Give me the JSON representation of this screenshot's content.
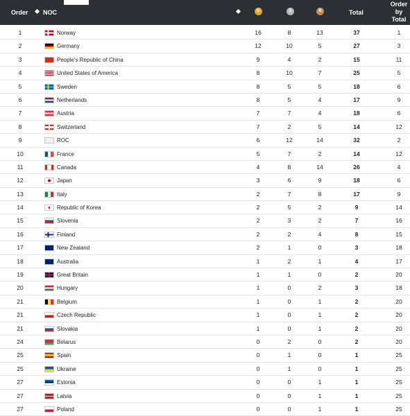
{
  "header": {
    "order": "Order",
    "noc": "NOC",
    "gold": "G",
    "silver": "S",
    "bronze": "B",
    "total": "Total",
    "order_by_total": "Order by Total"
  },
  "rows": [
    {
      "order": "1",
      "noc": "Norway",
      "g": "16",
      "s": "8",
      "b": "13",
      "total": "37",
      "obt": "1",
      "flag": "flag-norway"
    },
    {
      "order": "2",
      "noc": "Germany",
      "g": "12",
      "s": "10",
      "b": "5",
      "total": "27",
      "obt": "3",
      "flag": "flag-germany"
    },
    {
      "order": "3",
      "noc": "People's Republic of China",
      "g": "9",
      "s": "4",
      "b": "2",
      "total": "15",
      "obt": "11",
      "flag": "flag-china"
    },
    {
      "order": "4",
      "noc": "United States of America",
      "g": "8",
      "s": "10",
      "b": "7",
      "total": "25",
      "obt": "5",
      "flag": "flag-usa"
    },
    {
      "order": "5",
      "noc": "Sweden",
      "g": "8",
      "s": "5",
      "b": "5",
      "total": "18",
      "obt": "6",
      "flag": "flag-sweden"
    },
    {
      "order": "6",
      "noc": "Netherlands",
      "g": "8",
      "s": "5",
      "b": "4",
      "total": "17",
      "obt": "9",
      "flag": "flag-netherlands"
    },
    {
      "order": "7",
      "noc": "Austria",
      "g": "7",
      "s": "7",
      "b": "4",
      "total": "18",
      "obt": "6",
      "flag": "flag-austria"
    },
    {
      "order": "8",
      "noc": "Switzerland",
      "g": "7",
      "s": "2",
      "b": "5",
      "total": "14",
      "obt": "12",
      "flag": "flag-switzerland"
    },
    {
      "order": "9",
      "noc": "ROC",
      "g": "6",
      "s": "12",
      "b": "14",
      "total": "32",
      "obt": "2",
      "flag": "flag-roc"
    },
    {
      "order": "10",
      "noc": "France",
      "g": "5",
      "s": "7",
      "b": "2",
      "total": "14",
      "obt": "12",
      "flag": "flag-france"
    },
    {
      "order": "11",
      "noc": "Canada",
      "g": "4",
      "s": "8",
      "b": "14",
      "total": "26",
      "obt": "4",
      "flag": "flag-canada"
    },
    {
      "order": "12",
      "noc": "Japan",
      "g": "3",
      "s": "6",
      "b": "9",
      "total": "18",
      "obt": "6",
      "flag": "flag-japan"
    },
    {
      "order": "13",
      "noc": "Italy",
      "g": "2",
      "s": "7",
      "b": "8",
      "total": "17",
      "obt": "9",
      "flag": "flag-italy"
    },
    {
      "order": "14",
      "noc": "Republic of Korea",
      "g": "2",
      "s": "5",
      "b": "2",
      "total": "9",
      "obt": "14",
      "flag": "flag-korea"
    },
    {
      "order": "15",
      "noc": "Slovenia",
      "g": "2",
      "s": "3",
      "b": "2",
      "total": "7",
      "obt": "16",
      "flag": "flag-slovenia"
    },
    {
      "order": "16",
      "noc": "Finland",
      "g": "2",
      "s": "2",
      "b": "4",
      "total": "8",
      "obt": "15",
      "flag": "flag-finland"
    },
    {
      "order": "17",
      "noc": "New Zealand",
      "g": "2",
      "s": "1",
      "b": "0",
      "total": "3",
      "obt": "18",
      "flag": "flag-new-zealand"
    },
    {
      "order": "18",
      "noc": "Australia",
      "g": "1",
      "s": "2",
      "b": "1",
      "total": "4",
      "obt": "17",
      "flag": "flag-australia"
    },
    {
      "order": "19",
      "noc": "Great Britain",
      "g": "1",
      "s": "1",
      "b": "0",
      "total": "2",
      "obt": "20",
      "flag": "flag-great-britain"
    },
    {
      "order": "20",
      "noc": "Hungary",
      "g": "1",
      "s": "0",
      "b": "2",
      "total": "3",
      "obt": "18",
      "flag": "flag-hungary"
    },
    {
      "order": "21",
      "noc": "Belgium",
      "g": "1",
      "s": "0",
      "b": "1",
      "total": "2",
      "obt": "20",
      "flag": "flag-belgium"
    },
    {
      "order": "21",
      "noc": "Czech Republic",
      "g": "1",
      "s": "0",
      "b": "1",
      "total": "2",
      "obt": "20",
      "flag": "flag-czech"
    },
    {
      "order": "21",
      "noc": "Slovakia",
      "g": "1",
      "s": "0",
      "b": "1",
      "total": "2",
      "obt": "20",
      "flag": "flag-slovakia"
    },
    {
      "order": "24",
      "noc": "Belarus",
      "g": "0",
      "s": "2",
      "b": "0",
      "total": "2",
      "obt": "20",
      "flag": "flag-belarus"
    },
    {
      "order": "25",
      "noc": "Spain",
      "g": "0",
      "s": "1",
      "b": "0",
      "total": "1",
      "obt": "25",
      "flag": "flag-spain"
    },
    {
      "order": "25",
      "noc": "Ukraine",
      "g": "0",
      "s": "1",
      "b": "0",
      "total": "1",
      "obt": "25",
      "flag": "flag-ukraine"
    },
    {
      "order": "27",
      "noc": "Estonia",
      "g": "0",
      "s": "0",
      "b": "1",
      "total": "1",
      "obt": "25",
      "flag": "flag-estonia"
    },
    {
      "order": "27",
      "noc": "Latvia",
      "g": "0",
      "s": "0",
      "b": "1",
      "total": "1",
      "obt": "25",
      "flag": "flag-latvia"
    },
    {
      "order": "27",
      "noc": "Poland",
      "g": "0",
      "s": "0",
      "b": "1",
      "total": "1",
      "obt": "25",
      "flag": "flag-poland"
    }
  ]
}
